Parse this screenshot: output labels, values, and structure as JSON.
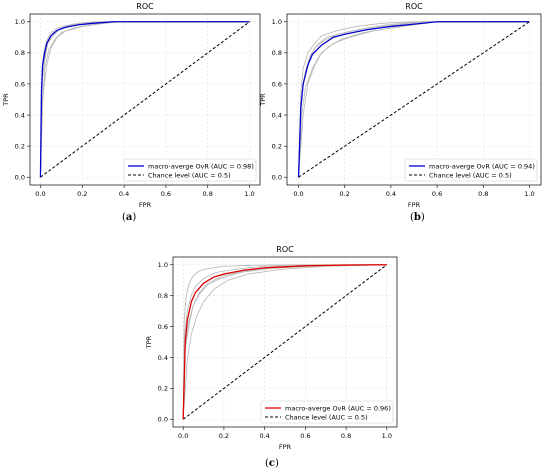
{
  "captions": [
    "(",
    "a",
    ")",
    "(",
    "b",
    ")",
    "(",
    "c",
    ")"
  ],
  "panels": [
    {
      "label": "a",
      "caption_open": "(",
      "caption_close": ")"
    },
    {
      "label": "b",
      "caption_open": "(",
      "caption_close": ")"
    },
    {
      "label": "c",
      "caption_open": "(",
      "caption_close": ")"
    }
  ],
  "chart_data": [
    {
      "type": "line",
      "title": "ROC",
      "xlabel": "FPR",
      "ylabel": "TPR",
      "xlim": [
        -0.05,
        1.05
      ],
      "ylim": [
        -0.05,
        1.05
      ],
      "xticks": [
        "0.0",
        "0.2",
        "0.4",
        "0.6",
        "0.8",
        "1.0"
      ],
      "yticks": [
        "0.0",
        "0.2",
        "0.4",
        "0.6",
        "0.8",
        "1.0"
      ],
      "grid": true,
      "legend": "lower-right",
      "series": [
        {
          "name": "macro-averge OvR (AUC = 0.98)",
          "color": "#0000cc",
          "style": "solid",
          "x": [
            0,
            0.005,
            0.01,
            0.02,
            0.03,
            0.05,
            0.08,
            0.12,
            0.18,
            0.25,
            0.35,
            0.5,
            1.0
          ],
          "y": [
            0,
            0.55,
            0.72,
            0.8,
            0.86,
            0.91,
            0.945,
            0.965,
            0.98,
            0.99,
            1.0,
            1.0,
            1.0
          ]
        },
        {
          "name": "Chance level (AUC = 0.5)",
          "color": "#000000",
          "style": "dashed",
          "x": [
            0,
            1
          ],
          "y": [
            0,
            1
          ]
        }
      ],
      "class_curves": [
        {
          "x": [
            0,
            0.01,
            0.02,
            0.04,
            0.06,
            0.1,
            0.15,
            0.22,
            0.3,
            1.0
          ],
          "y": [
            0,
            0.65,
            0.78,
            0.88,
            0.93,
            0.96,
            0.98,
            0.99,
            1.0,
            1.0
          ]
        },
        {
          "x": [
            0,
            0.01,
            0.03,
            0.05,
            0.08,
            0.12,
            0.2,
            0.28,
            0.38,
            1.0
          ],
          "y": [
            0,
            0.5,
            0.72,
            0.83,
            0.9,
            0.94,
            0.97,
            0.985,
            1.0,
            1.0
          ]
        },
        {
          "x": [
            0,
            0.005,
            0.015,
            0.03,
            0.05,
            0.08,
            0.12,
            0.18,
            0.26,
            1.0
          ],
          "y": [
            0,
            0.6,
            0.8,
            0.88,
            0.93,
            0.96,
            0.975,
            0.99,
            1.0,
            1.0
          ]
        },
        {
          "x": [
            0,
            0.01,
            0.02,
            0.04,
            0.07,
            0.1,
            0.16,
            0.24,
            0.34,
            1.0
          ],
          "y": [
            0,
            0.45,
            0.7,
            0.82,
            0.89,
            0.93,
            0.96,
            0.98,
            1.0,
            1.0
          ]
        },
        {
          "x": [
            0,
            0.005,
            0.02,
            0.035,
            0.06,
            0.09,
            0.14,
            0.2,
            0.3,
            1.0
          ],
          "y": [
            0,
            0.58,
            0.75,
            0.86,
            0.91,
            0.95,
            0.97,
            0.985,
            1.0,
            1.0
          ]
        }
      ]
    },
    {
      "type": "line",
      "title": "ROC",
      "xlabel": "FPR",
      "ylabel": "TPR",
      "xlim": [
        -0.05,
        1.05
      ],
      "ylim": [
        -0.05,
        1.05
      ],
      "xticks": [
        "0.0",
        "0.2",
        "0.4",
        "0.6",
        "0.8",
        "1.0"
      ],
      "yticks": [
        "0.0",
        "0.2",
        "0.4",
        "0.6",
        "0.8",
        "1.0"
      ],
      "grid": true,
      "legend": "lower-right",
      "series": [
        {
          "name": "macro-averge OvR (AUC = 0.94)",
          "color": "#0000cc",
          "style": "solid",
          "x": [
            0,
            0.01,
            0.02,
            0.04,
            0.06,
            0.1,
            0.15,
            0.2,
            0.3,
            0.4,
            0.5,
            0.6,
            1.0
          ],
          "y": [
            0,
            0.45,
            0.6,
            0.72,
            0.79,
            0.85,
            0.9,
            0.92,
            0.95,
            0.97,
            0.985,
            1.0,
            1.0
          ]
        },
        {
          "name": "Chance level (AUC = 0.5)",
          "color": "#000000",
          "style": "dashed",
          "x": [
            0,
            1
          ],
          "y": [
            0,
            1
          ]
        }
      ],
      "class_curves": [
        {
          "x": [
            0,
            0.01,
            0.03,
            0.05,
            0.08,
            0.12,
            0.2,
            0.3,
            0.42,
            0.55,
            1.0
          ],
          "y": [
            0,
            0.5,
            0.68,
            0.78,
            0.85,
            0.9,
            0.93,
            0.96,
            0.98,
            1.0,
            1.0
          ]
        },
        {
          "x": [
            0,
            0.02,
            0.04,
            0.07,
            0.1,
            0.15,
            0.22,
            0.32,
            0.45,
            0.6,
            1.0
          ],
          "y": [
            0,
            0.4,
            0.6,
            0.72,
            0.8,
            0.86,
            0.9,
            0.94,
            0.97,
            1.0,
            1.0
          ]
        },
        {
          "x": [
            0,
            0.01,
            0.02,
            0.04,
            0.07,
            0.1,
            0.16,
            0.25,
            0.36,
            0.5,
            1.0
          ],
          "y": [
            0,
            0.55,
            0.7,
            0.8,
            0.86,
            0.91,
            0.94,
            0.97,
            0.99,
            1.0,
            1.0
          ]
        },
        {
          "x": [
            0,
            0.015,
            0.03,
            0.06,
            0.09,
            0.13,
            0.19,
            0.28,
            0.4,
            0.58,
            1.0
          ],
          "y": [
            0,
            0.42,
            0.58,
            0.7,
            0.78,
            0.84,
            0.89,
            0.93,
            0.96,
            1.0,
            1.0
          ]
        },
        {
          "x": [
            0,
            0.01,
            0.025,
            0.045,
            0.07,
            0.11,
            0.17,
            0.26,
            0.38,
            0.52,
            1.0
          ],
          "y": [
            0,
            0.48,
            0.64,
            0.76,
            0.83,
            0.88,
            0.92,
            0.95,
            0.98,
            1.0,
            1.0
          ]
        }
      ]
    },
    {
      "type": "line",
      "title": "ROC",
      "xlabel": "FPR",
      "ylabel": "TPR",
      "xlim": [
        -0.05,
        1.05
      ],
      "ylim": [
        -0.05,
        1.05
      ],
      "xticks": [
        "0.0",
        "0.2",
        "0.4",
        "0.6",
        "0.8",
        "1.0"
      ],
      "yticks": [
        "0.0",
        "0.2",
        "0.4",
        "0.6",
        "0.8",
        "1.0"
      ],
      "grid": true,
      "legend": "lower-right",
      "series": [
        {
          "name": "macro-averge OvR (AUC = 0.96)",
          "color": "#dd0000",
          "style": "solid",
          "x": [
            0,
            0.01,
            0.02,
            0.04,
            0.06,
            0.1,
            0.15,
            0.2,
            0.3,
            0.4,
            0.6,
            0.8,
            1.0
          ],
          "y": [
            0,
            0.5,
            0.64,
            0.76,
            0.82,
            0.88,
            0.92,
            0.94,
            0.965,
            0.98,
            0.993,
            0.998,
            1.0
          ]
        },
        {
          "name": "Chance level (AUC = 0.5)",
          "color": "#000000",
          "style": "dashed",
          "x": [
            0,
            1
          ],
          "y": [
            0,
            1
          ]
        }
      ],
      "class_curves": [
        {
          "x": [
            0,
            0.005,
            0.015,
            0.03,
            0.05,
            0.08,
            0.12,
            0.2,
            0.35,
            0.6,
            1.0
          ],
          "y": [
            0,
            0.65,
            0.8,
            0.88,
            0.93,
            0.96,
            0.975,
            0.99,
            0.997,
            1.0,
            1.0
          ]
        },
        {
          "x": [
            0,
            0.01,
            0.03,
            0.05,
            0.08,
            0.12,
            0.2,
            0.3,
            0.45,
            0.7,
            1.0
          ],
          "y": [
            0,
            0.45,
            0.62,
            0.74,
            0.82,
            0.88,
            0.93,
            0.96,
            0.98,
            0.995,
            1.0
          ]
        },
        {
          "x": [
            0,
            0.02,
            0.04,
            0.07,
            0.1,
            0.15,
            0.22,
            0.32,
            0.48,
            0.7,
            1.0
          ],
          "y": [
            0,
            0.38,
            0.55,
            0.68,
            0.76,
            0.84,
            0.9,
            0.94,
            0.97,
            0.99,
            1.0
          ]
        },
        {
          "x": [
            0,
            0.008,
            0.02,
            0.04,
            0.06,
            0.1,
            0.16,
            0.25,
            0.4,
            0.65,
            1.0
          ],
          "y": [
            0,
            0.55,
            0.7,
            0.8,
            0.86,
            0.91,
            0.95,
            0.97,
            0.99,
            0.998,
            1.0
          ]
        },
        {
          "x": [
            0,
            0.012,
            0.025,
            0.05,
            0.08,
            0.12,
            0.18,
            0.28,
            0.42,
            0.68,
            1.0
          ],
          "y": [
            0,
            0.48,
            0.62,
            0.74,
            0.81,
            0.87,
            0.91,
            0.95,
            0.975,
            0.995,
            1.0
          ]
        }
      ]
    }
  ]
}
